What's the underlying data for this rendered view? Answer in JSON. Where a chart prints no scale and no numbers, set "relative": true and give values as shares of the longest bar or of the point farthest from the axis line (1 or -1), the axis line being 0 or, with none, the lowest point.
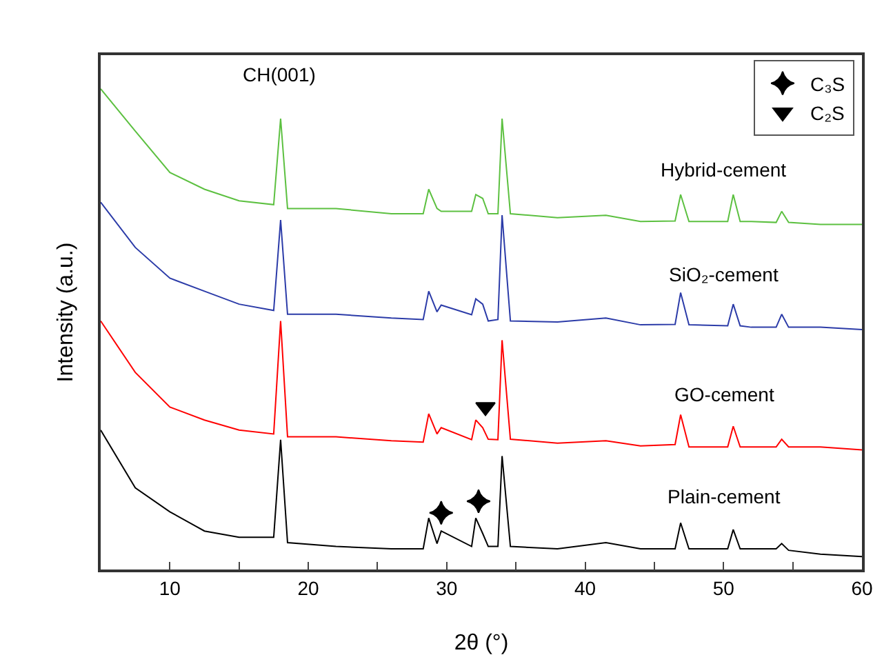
{
  "chart_data": {
    "type": "line",
    "relative": true,
    "xlabel": "2θ (°)",
    "ylabel": "Intensity (a.u.)",
    "x": [
      5,
      7.5,
      10,
      12.5,
      15,
      17.5,
      18,
      18.5,
      22,
      26,
      28.3,
      28.7,
      29.3,
      29.6,
      31.8,
      32.1,
      32.6,
      33,
      33.7,
      34,
      34.6,
      38,
      41.5,
      44,
      46.5,
      46.9,
      47.5,
      50.3,
      50.7,
      51.2,
      52,
      53.8,
      54.2,
      54.7,
      57,
      60
    ],
    "xlim": [
      5,
      60
    ],
    "xticks": [
      10,
      {
        "value": 15,
        "label": null
      },
      20,
      {
        "value": 25,
        "label": null
      },
      30,
      {
        "value": 35,
        "label": null
      },
      40,
      {
        "value": 45,
        "label": null
      },
      50,
      {
        "value": 55,
        "label": null
      },
      60
    ],
    "marker": "none",
    "legend": "top right",
    "grid": false,
    "series": [
      {
        "name": "Plain-cement",
        "color": "#000000",
        "values": [
          0.29,
          0.17,
          0.12,
          0.08,
          0.067,
          0.067,
          0.27,
          0.056,
          0.048,
          0.043,
          0.043,
          0.107,
          0.054,
          0.08,
          0.048,
          0.107,
          0.075,
          0.048,
          0.048,
          0.236,
          0.048,
          0.043,
          0.056,
          0.043,
          0.043,
          0.097,
          0.043,
          0.043,
          0.083,
          0.043,
          0.043,
          0.043,
          0.054,
          0.04,
          0.032,
          0.027
        ]
      },
      {
        "name": "GO-cement",
        "color": "#ff0000",
        "values": [
          0.517,
          0.41,
          0.338,
          0.311,
          0.29,
          0.282,
          0.517,
          0.276,
          0.276,
          0.268,
          0.265,
          0.324,
          0.282,
          0.295,
          0.27,
          0.311,
          0.295,
          0.271,
          0.27,
          0.477,
          0.271,
          0.263,
          0.268,
          0.257,
          0.26,
          0.322,
          0.255,
          0.255,
          0.298,
          0.255,
          0.255,
          0.255,
          0.271,
          0.255,
          0.255,
          0.249
        ]
      },
      {
        "name": "SiO₂-cement",
        "color": "#2b3ba8",
        "values": [
          0.764,
          0.67,
          0.606,
          0.579,
          0.552,
          0.539,
          0.727,
          0.531,
          0.531,
          0.523,
          0.52,
          0.579,
          0.536,
          0.55,
          0.53,
          0.563,
          0.552,
          0.517,
          0.52,
          0.737,
          0.517,
          0.515,
          0.523,
          0.509,
          0.51,
          0.576,
          0.509,
          0.507,
          0.552,
          0.507,
          0.504,
          0.504,
          0.531,
          0.504,
          0.504,
          0.499
        ]
      },
      {
        "name": "Hybrid-cement",
        "color": "#5cc040",
        "values": [
          1,
          0.912,
          0.826,
          0.791,
          0.767,
          0.759,
          0.938,
          0.751,
          0.751,
          0.74,
          0.74,
          0.791,
          0.751,
          0.745,
          0.745,
          0.78,
          0.772,
          0.74,
          0.74,
          0.938,
          0.74,
          0.732,
          0.737,
          0.724,
          0.725,
          0.78,
          0.724,
          0.724,
          0.78,
          0.724,
          0.724,
          0.722,
          0.745,
          0.722,
          0.718,
          0.718
        ]
      },
      {
        "name": "C₃S",
        "type": "scatter",
        "marker": "star",
        "color": "#000000",
        "x": [
          29.6,
          32.3
        ],
        "values": [
          0.118,
          0.142
        ]
      },
      {
        "name": "C₂S",
        "type": "scatter",
        "marker": "triangle",
        "color": "#000000",
        "x": [
          32.8
        ],
        "values": [
          0.338
        ]
      }
    ],
    "annotations": [
      "CH(001)"
    ]
  }
}
